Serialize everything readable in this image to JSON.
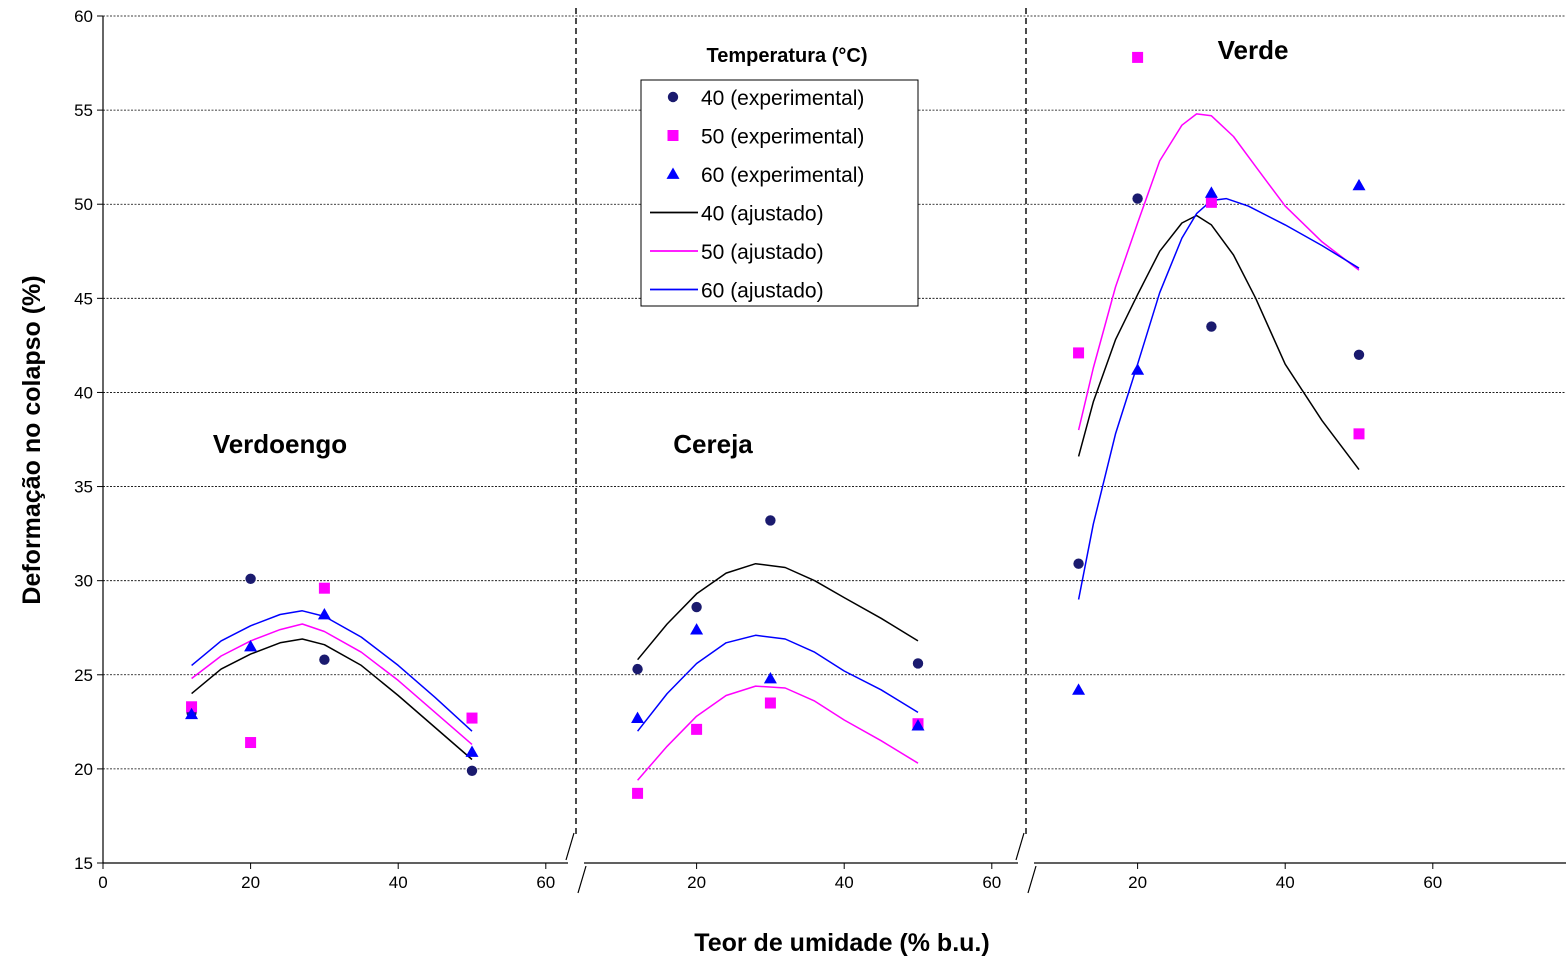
{
  "chart_data": {
    "type": "scatter",
    "xlabel": "Teor de umidade (% b.u.)",
    "ylabel": "Deformação no colapso (%)",
    "ylim": [
      15,
      60
    ],
    "yticks": [
      15,
      20,
      25,
      30,
      35,
      40,
      45,
      50,
      55,
      60
    ],
    "grid": "horizontal dashed",
    "legend": {
      "title": "Temperatura (°C)",
      "placement": "top-center"
    },
    "panels": [
      {
        "name": "Verdoengo",
        "xticks": [
          "0",
          "20",
          "40",
          "60"
        ],
        "series": [
          {
            "name": "40 (experimental)",
            "marker": "circle",
            "color": "#1a1a6e",
            "x": [
              12,
              20,
              30,
              50
            ],
            "y": [
              23.0,
              30.1,
              25.8,
              19.9
            ]
          },
          {
            "name": "50 (experimental)",
            "marker": "square",
            "color": "#ff00ff",
            "x": [
              12,
              20,
              30,
              50
            ],
            "y": [
              23.3,
              21.4,
              29.6,
              22.7
            ]
          },
          {
            "name": "60 (experimental)",
            "marker": "triangle",
            "color": "#0000ff",
            "x": [
              12,
              20,
              30,
              50
            ],
            "y": [
              22.9,
              26.5,
              28.2,
              20.9
            ]
          },
          {
            "name": "40 (ajustado)",
            "line": true,
            "color": "#000000",
            "x": [
              12,
              16,
              20,
              24,
              27,
              30,
              35,
              40,
              45,
              50
            ],
            "y": [
              24.0,
              25.3,
              26.1,
              26.7,
              26.9,
              26.6,
              25.5,
              23.9,
              22.2,
              20.5
            ]
          },
          {
            "name": "50 (ajustado)",
            "line": true,
            "color": "#ff00ff",
            "x": [
              12,
              16,
              20,
              24,
              27,
              30,
              35,
              40,
              45,
              50
            ],
            "y": [
              24.8,
              26.0,
              26.8,
              27.4,
              27.7,
              27.3,
              26.2,
              24.7,
              23.0,
              21.3
            ]
          },
          {
            "name": "60 (ajustado)",
            "line": true,
            "color": "#0000ff",
            "x": [
              12,
              16,
              20,
              24,
              27,
              30,
              35,
              40,
              45,
              50
            ],
            "y": [
              25.5,
              26.8,
              27.6,
              28.2,
              28.4,
              28.1,
              27.0,
              25.5,
              23.8,
              22.0
            ]
          }
        ]
      },
      {
        "name": "Cereja",
        "xticks": [
          "20",
          "40",
          "60"
        ],
        "series": [
          {
            "name": "40 (experimental)",
            "marker": "circle",
            "color": "#1a1a6e",
            "x": [
              12,
              20,
              30,
              50
            ],
            "y": [
              25.3,
              28.6,
              33.2,
              25.6
            ]
          },
          {
            "name": "50 (experimental)",
            "marker": "square",
            "color": "#ff00ff",
            "x": [
              12,
              20,
              30,
              50
            ],
            "y": [
              18.7,
              22.1,
              23.5,
              22.4
            ]
          },
          {
            "name": "60 (experimental)",
            "marker": "triangle",
            "color": "#0000ff",
            "x": [
              12,
              20,
              30,
              50
            ],
            "y": [
              22.7,
              27.4,
              24.8,
              22.3
            ]
          },
          {
            "name": "40 (ajustado)",
            "line": true,
            "color": "#000000",
            "x": [
              12,
              16,
              20,
              24,
              28,
              32,
              36,
              40,
              45,
              50
            ],
            "y": [
              25.8,
              27.7,
              29.3,
              30.4,
              30.9,
              30.7,
              30.0,
              29.1,
              28.0,
              26.8
            ]
          },
          {
            "name": "50 (ajustado)",
            "line": true,
            "color": "#ff00ff",
            "x": [
              12,
              16,
              20,
              24,
              28,
              32,
              36,
              40,
              45,
              50
            ],
            "y": [
              19.4,
              21.2,
              22.8,
              23.9,
              24.4,
              24.3,
              23.6,
              22.6,
              21.5,
              20.3
            ]
          },
          {
            "name": "60 (ajustado)",
            "line": true,
            "color": "#0000ff",
            "x": [
              12,
              16,
              20,
              24,
              28,
              32,
              36,
              40,
              45,
              50
            ],
            "y": [
              22.0,
              24.0,
              25.6,
              26.7,
              27.1,
              26.9,
              26.2,
              25.2,
              24.2,
              23.0
            ]
          }
        ]
      },
      {
        "name": "Verde",
        "xticks": [
          "20",
          "40",
          "60"
        ],
        "series": [
          {
            "name": "40 (experimental)",
            "marker": "circle",
            "color": "#1a1a6e",
            "x": [
              12,
              20,
              30,
              50
            ],
            "y": [
              30.9,
              50.3,
              43.5,
              42.0
            ]
          },
          {
            "name": "50 (experimental)",
            "marker": "square",
            "color": "#ff00ff",
            "x": [
              12,
              20,
              30,
              50
            ],
            "y": [
              42.1,
              57.8,
              50.1,
              37.8
            ]
          },
          {
            "name": "60 (experimental)",
            "marker": "triangle",
            "color": "#0000ff",
            "x": [
              12,
              20,
              30,
              50
            ],
            "y": [
              24.2,
              41.2,
              50.6,
              51.0
            ]
          },
          {
            "name": "40 (ajustado)",
            "line": true,
            "color": "#000000",
            "x": [
              12,
              14,
              17,
              20,
              23,
              26,
              28,
              30,
              33,
              36,
              40,
              45,
              50
            ],
            "y": [
              36.6,
              39.5,
              42.8,
              45.2,
              47.5,
              49.0,
              49.4,
              48.9,
              47.3,
              45.0,
              41.5,
              38.5,
              35.9
            ]
          },
          {
            "name": "50 (ajustado)",
            "line": true,
            "color": "#ff00ff",
            "x": [
              12,
              14,
              17,
              20,
              23,
              26,
              28,
              30,
              33,
              36,
              40,
              45,
              50
            ],
            "y": [
              38.0,
              41.3,
              45.6,
              49.0,
              52.3,
              54.2,
              54.8,
              54.7,
              53.6,
              52.0,
              49.9,
              48.0,
              46.5
            ]
          },
          {
            "name": "60 (ajustado)",
            "line": true,
            "color": "#0000ff",
            "x": [
              12,
              14,
              17,
              20,
              23,
              26,
              28,
              30,
              32,
              35,
              40,
              45,
              50
            ],
            "y": [
              29.0,
              33.0,
              37.8,
              41.5,
              45.3,
              48.2,
              49.5,
              50.2,
              50.3,
              49.9,
              48.9,
              47.8,
              46.6
            ]
          }
        ]
      }
    ]
  }
}
